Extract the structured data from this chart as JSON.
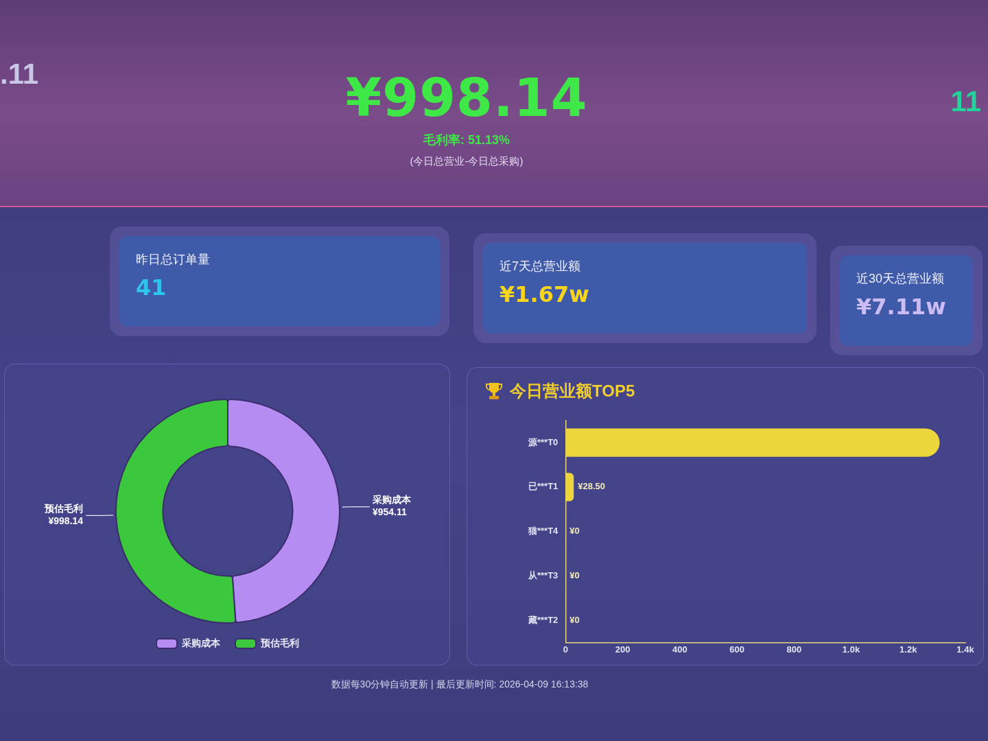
{
  "chart_data": [
    {
      "type": "other",
      "title": ".11"
    },
    {
      "type": "other",
      "title": "¥998.14",
      "subtitle": "毛利率: 51.13%",
      "annotations": [
        "(今日总营业-今日总采购)"
      ]
    },
    {
      "type": "other",
      "title": "11"
    },
    {
      "type": "other",
      "title": "昨日总订单量",
      "subtitle": "41"
    },
    {
      "type": "other",
      "title": "近7天总营业额",
      "subtitle": "¥1.67w"
    },
    {
      "type": "other",
      "title": "近30天总营业额",
      "subtitle": "¥7.11w"
    },
    {
      "type": "donut",
      "categories": [
        "采购成本",
        "预估毛利"
      ],
      "values": [
        954.11,
        998.14
      ],
      "colors": [
        "#b48cf2",
        "#3cc83c"
      ],
      "value_labels": [
        "¥954.11",
        "¥998.14"
      ],
      "legend": "bottom"
    },
    {
      "type": "bar",
      "orientation": "horizontal",
      "title": "今日营业额TOP5",
      "categories": [
        "源***T0",
        "已***T1",
        "猫***T4",
        "从***T3",
        "藏***T2"
      ],
      "values": [
        1310,
        28.5,
        0,
        0,
        0
      ],
      "color": "#ecd63c",
      "value_labels": [
        null,
        "¥28.50",
        "¥0",
        "¥0",
        "¥0"
      ],
      "xlim": [
        0,
        1400
      ],
      "xticks": [
        0,
        200,
        400,
        600,
        800,
        {
          "value": 1000,
          "label": "1.0k"
        },
        {
          "value": 1200,
          "label": "1.2k"
        },
        {
          "value": 1400,
          "label": "1.4k"
        }
      ]
    },
    {
      "type": "other",
      "annotations": [
        "数据每30分钟自动更新 | 最后更新时间: 2026-04-09 16:13:38"
      ]
    }
  ]
}
